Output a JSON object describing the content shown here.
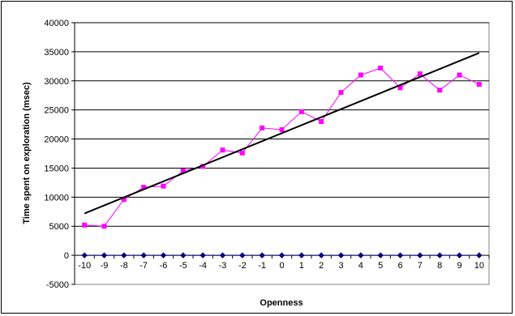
{
  "chart_data": {
    "type": "line",
    "title": "",
    "xlabel": "Openness",
    "ylabel": "Time spent on exploration (msec)",
    "x": [
      -10,
      -9,
      -8,
      -7,
      -6,
      -5,
      -4,
      -3,
      -2,
      -1,
      0,
      1,
      2,
      3,
      4,
      5,
      6,
      7,
      8,
      9,
      10
    ],
    "x_tick_labels": [
      "-10",
      "-9",
      "-8",
      "-7",
      "-6",
      "-5",
      "-4",
      "-3",
      "-2",
      "-1",
      "0",
      "1",
      "2",
      "3",
      "4",
      "5",
      "6",
      "7",
      "8",
      "9",
      "10"
    ],
    "ylim": [
      -5000,
      40000
    ],
    "y_ticks": [
      -5000,
      0,
      5000,
      10000,
      15000,
      20000,
      25000,
      30000,
      35000,
      40000
    ],
    "y_tick_labels": [
      "-5000",
      "0",
      "5000",
      "10000",
      "15000",
      "20000",
      "25000",
      "30000",
      "35000",
      "40000"
    ],
    "grid": true,
    "legend": "none",
    "series": [
      {
        "color": "#ff00ff",
        "marker": "square",
        "values": [
          5200,
          5000,
          9600,
          11700,
          11900,
          14500,
          15300,
          18100,
          17600,
          21900,
          21600,
          24700,
          23000,
          28000,
          31000,
          32200,
          28800,
          31200,
          28400,
          31000,
          29400
        ]
      },
      {
        "color": "#000080",
        "marker": "diamond",
        "values": [
          0,
          0,
          0,
          0,
          0,
          0,
          0,
          0,
          0,
          0,
          0,
          0,
          0,
          0,
          0,
          0,
          0,
          0,
          0,
          0,
          0
        ]
      }
    ],
    "trendline": {
      "color": "#000000",
      "x": [
        -10,
        10
      ],
      "values": [
        7200,
        34800
      ]
    }
  }
}
